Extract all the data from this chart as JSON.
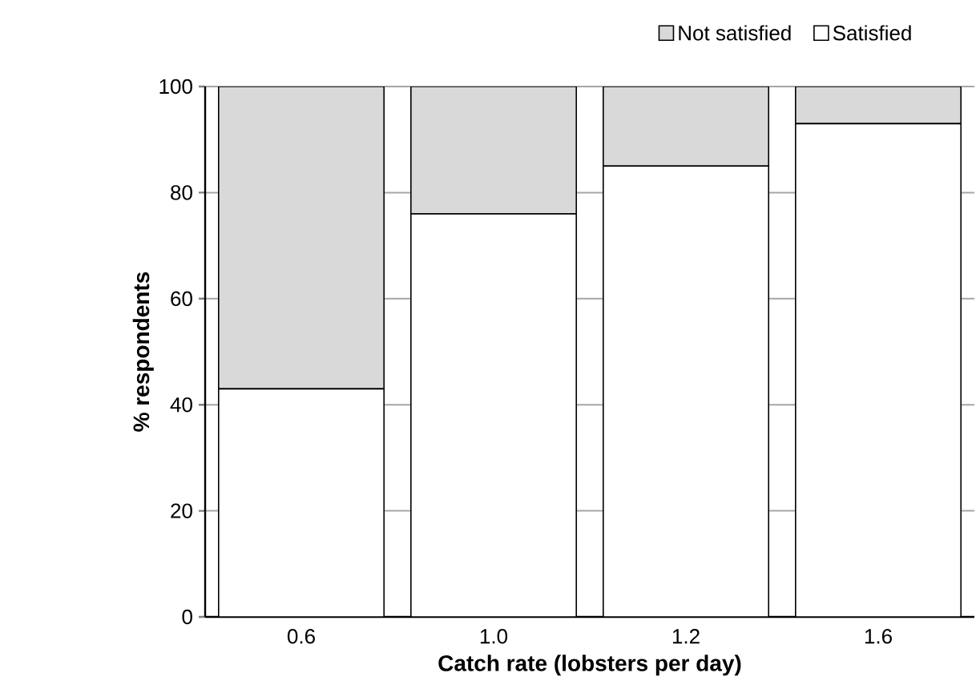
{
  "chart_data": {
    "type": "bar",
    "stacked": true,
    "xlabel": "Catch rate (lobsters per day)",
    "ylabel": "% respondents",
    "categories": [
      "0.6",
      "1.0",
      "1.2",
      "1.6"
    ],
    "series": [
      {
        "name": "Satisfied",
        "color": "#ffffff",
        "values": [
          43,
          76,
          85,
          93
        ]
      },
      {
        "name": "Not satisfied",
        "color": "#d9d9d9",
        "values": [
          57,
          24,
          15,
          7
        ]
      }
    ],
    "ylim": [
      0,
      100
    ],
    "yticks": [
      0,
      20,
      40,
      60,
      80,
      100
    ],
    "grid": "y",
    "legend": "top right"
  }
}
